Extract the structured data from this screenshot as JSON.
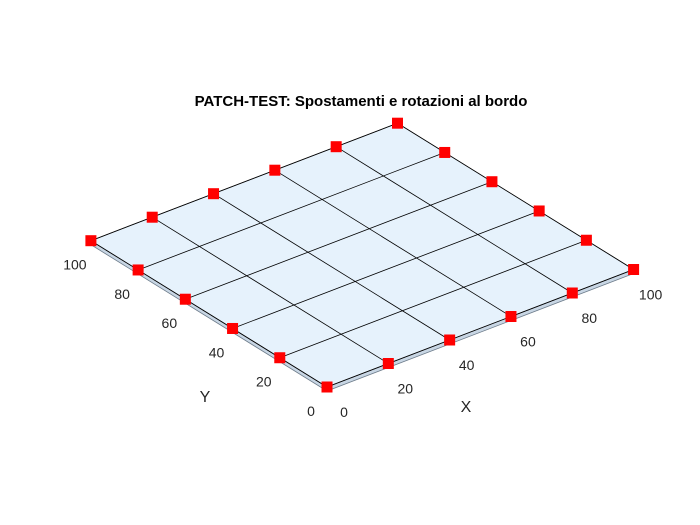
{
  "figure": {
    "title": "PATCH-TEST: Spostamenti e rotazioni al bordo"
  },
  "chart_data": {
    "type": "surface",
    "title": "PATCH-TEST: Spostamenti e rotazioni al bordo",
    "xlabel": "X",
    "ylabel": "Y",
    "xlim": [
      0,
      100
    ],
    "ylim": [
      0,
      100
    ],
    "x_ticks": [
      0,
      20,
      40,
      60,
      80,
      100
    ],
    "y_ticks": [
      0,
      20,
      40,
      60,
      80,
      100
    ],
    "grid_lines": [
      0,
      20,
      40,
      60,
      80,
      100
    ],
    "z": 0,
    "surface_color": "#e6f2fc",
    "mesh_color": "#000000",
    "marker_color": "#ff0000",
    "marker_shape": "square",
    "boundary_nodes": [
      [
        0,
        0
      ],
      [
        20,
        0
      ],
      [
        40,
        0
      ],
      [
        60,
        0
      ],
      [
        80,
        0
      ],
      [
        100,
        0
      ],
      [
        0,
        20
      ],
      [
        0,
        40
      ],
      [
        0,
        60
      ],
      [
        0,
        80
      ],
      [
        0,
        100
      ],
      [
        20,
        100
      ],
      [
        40,
        100
      ],
      [
        60,
        100
      ],
      [
        80,
        100
      ],
      [
        100,
        100
      ],
      [
        100,
        20
      ],
      [
        100,
        40
      ],
      [
        100,
        60
      ],
      [
        100,
        80
      ]
    ]
  }
}
